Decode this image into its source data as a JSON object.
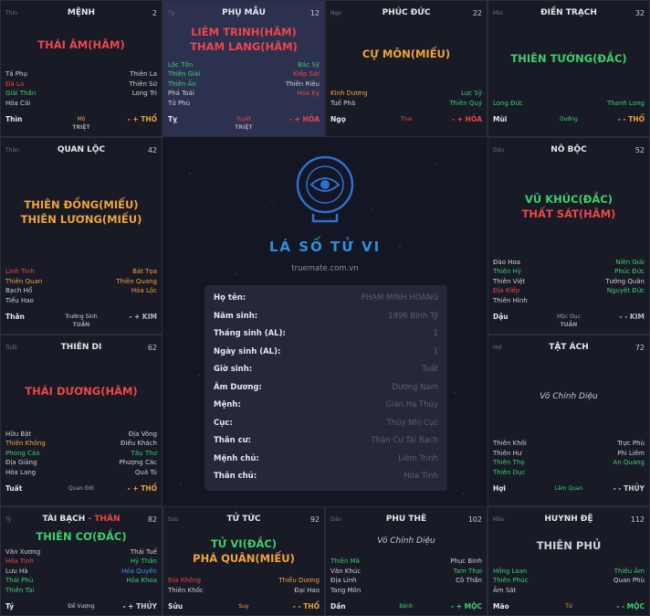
{
  "cells": [
    {
      "branch": "Thìn",
      "name": "MỆNH",
      "number": "2",
      "main": [
        {
          "text": "THÁI ÂM(HÃM)",
          "color": "#f0454a"
        }
      ],
      "left": [
        {
          "text": "Tả Phụ",
          "color": "#d0d0d6"
        },
        {
          "text": "Đà La",
          "color": "#f0454a"
        },
        {
          "text": "Giải Thần",
          "color": "#3ecf6a"
        },
        {
          "text": "Hóa Cái",
          "color": "#d0d0d6"
        }
      ],
      "right": [
        {
          "text": "Thiên La",
          "color": "#d0d0d6"
        },
        {
          "text": "Thiên Sứ",
          "color": "#d0d0d6"
        },
        {
          "text": "Long Trì",
          "color": "#d0d0d6"
        }
      ],
      "footer": {
        "branch": "Thìn",
        "stage": "Mộ",
        "stage_color": "#f0a43a",
        "element": "- + THỔ",
        "element_color": "#f0a43a"
      },
      "marker": "TRIỆT"
    },
    {
      "branch": "Tỵ",
      "name": "PHỤ MẪU",
      "number": "12",
      "highlight": true,
      "main": [
        {
          "text": "LIÊM TRINH(HÃM)",
          "color": "#f0454a"
        },
        {
          "text": "THAM LANG(HÃM)",
          "color": "#f0454a"
        }
      ],
      "left": [
        {
          "text": "Lộc Tồn",
          "color": "#3ecf6a"
        },
        {
          "text": "Thiên Giải",
          "color": "#3ecf6a"
        },
        {
          "text": "Thiên Ấn",
          "color": "#3ecf6a"
        },
        {
          "text": "Phá Toái",
          "color": "#d0d0d6"
        },
        {
          "text": "Tử Phù",
          "color": "#d0d0d6"
        }
      ],
      "right": [
        {
          "text": "Bác Sỹ",
          "color": "#3ecf6a"
        },
        {
          "text": "Kiếp Sát",
          "color": "#f0454a"
        },
        {
          "text": "Thiên Riêu",
          "color": "#d0d0d6"
        },
        {
          "text": "Hóa Kỵ",
          "color": "#f0454a"
        }
      ],
      "footer": {
        "branch": "Tỵ",
        "stage": "Tuyệt",
        "stage_color": "#f0454a",
        "element": "- + HỎA",
        "element_color": "#f0454a"
      },
      "marker": "TRIỆT"
    },
    {
      "branch": "Ngọ",
      "name": "PHÚC ĐỨC",
      "number": "22",
      "main": [
        {
          "text": "CỰ MÔN(MIẾU)",
          "color": "#f0a43a"
        }
      ],
      "left": [
        {
          "text": "Kình Dương",
          "color": "#f0a43a"
        },
        {
          "text": "Tuế Phá",
          "color": "#d0d0d6"
        }
      ],
      "right": [
        {
          "text": "Lực Sỹ",
          "color": "#3ecf6a"
        },
        {
          "text": "Thiên Quý",
          "color": "#3ecf6a"
        }
      ],
      "footer": {
        "branch": "Ngọ",
        "stage": "Thai",
        "stage_color": "#f0454a",
        "element": "- + HỎA",
        "element_color": "#f0454a"
      }
    },
    {
      "branch": "Mùi",
      "name": "ĐIỀN TRẠCH",
      "number": "32",
      "main": [
        {
          "text": "THIÊN TƯỚNG(ĐẮC)",
          "color": "#3ecf6a"
        }
      ],
      "left": [
        {
          "text": "Long Đức",
          "color": "#3ecf6a"
        }
      ],
      "right": [
        {
          "text": "Thanh Long",
          "color": "#3ecf6a"
        }
      ],
      "footer": {
        "branch": "Mùi",
        "stage": "Dưỡng",
        "stage_color": "#3ecf6a",
        "element": "- - THỔ",
        "element_color": "#f0a43a"
      }
    },
    {
      "branch": "Thân",
      "name": "QUAN LỘC",
      "number": "42",
      "main": [
        {
          "text": "THIÊN ĐỒNG(MIẾU)",
          "color": "#f0a43a"
        },
        {
          "text": "THIÊN LƯƠNG(MIẾU)",
          "color": "#f0a43a"
        }
      ],
      "left": [
        {
          "text": "Linh Tinh",
          "color": "#f0454a"
        },
        {
          "text": "Thiên Quan",
          "color": "#f0a43a"
        },
        {
          "text": "Bạch Hổ",
          "color": "#d0d0d6"
        },
        {
          "text": "Tiểu Hao",
          "color": "#d0d0d6"
        }
      ],
      "right": [
        {
          "text": "Bát Tọa",
          "color": "#f0a43a"
        },
        {
          "text": "Thiên Quang",
          "color": "#f0a43a"
        },
        {
          "text": "Hóa Lộc",
          "color": "#f0a43a"
        }
      ],
      "footer": {
        "branch": "Thân",
        "stage": "Trường Sinh",
        "stage_color": "#d0d0d6",
        "element": "- + KIM",
        "element_color": "#b8b8c0"
      },
      "marker": "TUẦN"
    },
    {
      "branch": "Dậu",
      "name": "NÔ BỘC",
      "number": "52",
      "main": [
        {
          "text": "VŨ KHÚC(ĐẮC)",
          "color": "#3ecf6a"
        },
        {
          "text": "THẤT SÁT(HÃM)",
          "color": "#f0454a"
        }
      ],
      "left": [
        {
          "text": "Đào Hoa",
          "color": "#d0d0d6"
        },
        {
          "text": "Thiên Hỷ",
          "color": "#3ecf6a"
        },
        {
          "text": "Thiên Việt",
          "color": "#d0d0d6"
        },
        {
          "text": "Địa Kiếp",
          "color": "#f0454a"
        },
        {
          "text": "Thiên Hình",
          "color": "#d0d0d6"
        }
      ],
      "right": [
        {
          "text": "Niên Giải",
          "color": "#3ecf6a"
        },
        {
          "text": "Phúc Đức",
          "color": "#3ecf6a"
        },
        {
          "text": "Tướng Quân",
          "color": "#d0d0d6"
        },
        {
          "text": "Nguyệt Đức",
          "color": "#3ecf6a"
        }
      ],
      "footer": {
        "branch": "Dậu",
        "stage": "Mộc Dục",
        "stage_color": "#a0a0aa",
        "element": "- - KIM",
        "element_color": "#b8b8c0"
      },
      "marker": "TUẦN"
    },
    {
      "branch": "Tuất",
      "name": "THIÊN DI",
      "number": "62",
      "main": [
        {
          "text": "THÁI DƯƠNG(HÃM)",
          "color": "#f0454a"
        }
      ],
      "left": [
        {
          "text": "Hữu Bật",
          "color": "#d0d0d6"
        },
        {
          "text": "Thiên Không",
          "color": "#f0a43a"
        },
        {
          "text": "Phong Cáo",
          "color": "#3ecf6a"
        },
        {
          "text": "Địa Giảng",
          "color": "#d0d0d6"
        },
        {
          "text": "Hóa Lang",
          "color": "#d0d0d6"
        }
      ],
      "right": [
        {
          "text": "Địa Võng",
          "color": "#d0d0d6"
        },
        {
          "text": "Điếu Khách",
          "color": "#d0d0d6"
        },
        {
          "text": "Tấu Thư",
          "color": "#3ecf6a"
        },
        {
          "text": "Phượng Các",
          "color": "#d0d0d6"
        },
        {
          "text": "Quả Tú",
          "color": "#d0d0d6"
        }
      ],
      "footer": {
        "branch": "Tuất",
        "stage": "Quan Đới",
        "stage_color": "#a0a0aa",
        "element": "- + THỔ",
        "element_color": "#f0a43a"
      }
    },
    {
      "branch": "Hợi",
      "name": "TẬT ÁCH",
      "number": "72",
      "main": [
        {
          "text": "Vô Chính Diệu",
          "color": "#c8c8d0",
          "italic": true
        }
      ],
      "left": [
        {
          "text": "Thiên Khôi",
          "color": "#d0d0d6"
        },
        {
          "text": "Thiên Hư",
          "color": "#d0d0d6"
        },
        {
          "text": "Thiên Thọ",
          "color": "#3ecf6a"
        },
        {
          "text": "Thiên Dục",
          "color": "#3ecf6a"
        }
      ],
      "right": [
        {
          "text": "Trực Phù",
          "color": "#d0d0d6"
        },
        {
          "text": "Phi Liêm",
          "color": "#d0d0d6"
        },
        {
          "text": "An Quang",
          "color": "#3ecf6a"
        }
      ],
      "footer": {
        "branch": "Hợi",
        "stage": "Lâm Quan",
        "stage_color": "#3ecf6a",
        "element": "- - THỦY",
        "element_color": "#d0d0d6"
      }
    },
    {
      "branch": "Tý",
      "name": "TÀI BẠCH",
      "name_suffix": "- THÂN",
      "number": "82",
      "main": [
        {
          "text": "THIÊN CƠ(ĐẮC)",
          "color": "#3ecf6a"
        }
      ],
      "left": [
        {
          "text": "Văn Xương",
          "color": "#d0d0d6"
        },
        {
          "text": "Hóa Tinh",
          "color": "#f0454a"
        },
        {
          "text": "Lưu Hà",
          "color": "#d0d0d6"
        },
        {
          "text": "Thái Phù",
          "color": "#3ecf6a"
        },
        {
          "text": "Thiên Tài",
          "color": "#3ecf6a"
        }
      ],
      "right": [
        {
          "text": "Thái Tuế",
          "color": "#d0d0d6"
        },
        {
          "text": "Hỷ Thần",
          "color": "#3ecf6a"
        },
        {
          "text": "Hóa Quyền",
          "color": "#4a90e8"
        },
        {
          "text": "Hóa Khoa",
          "color": "#3ecf6a"
        }
      ],
      "footer": {
        "branch": "Tý",
        "stage": "Đế Vượng",
        "stage_color": "#d0d0d6",
        "element": "- + THỦY",
        "element_color": "#d0d0d6"
      }
    },
    {
      "branch": "Sửu",
      "name": "TỬ TỨC",
      "number": "92",
      "main": [
        {
          "text": "TỬ VI(ĐẮC)",
          "color": "#3ecf6a"
        },
        {
          "text": "PHÁ QUÂN(MIẾU)",
          "color": "#f0a43a"
        }
      ],
      "left": [
        {
          "text": "Địa Không",
          "color": "#f0454a"
        },
        {
          "text": "Thiên Khốc",
          "color": "#d0d0d6"
        }
      ],
      "right": [
        {
          "text": "Thiếu Dương",
          "color": "#f0a43a"
        },
        {
          "text": "Đại Hao",
          "color": "#d0d0d6"
        }
      ],
      "footer": {
        "branch": "Sửu",
        "stage": "Suy",
        "stage_color": "#f0a43a",
        "element": "- - THỔ",
        "element_color": "#f0a43a"
      }
    },
    {
      "branch": "Dần",
      "name": "PHU THÊ",
      "number": "102",
      "main": [
        {
          "text": "Vô Chính Diệu",
          "color": "#c8c8d0",
          "italic": true
        }
      ],
      "left": [
        {
          "text": "Thiên Mã",
          "color": "#3ecf6a"
        },
        {
          "text": "Văn Khúc",
          "color": "#d0d0d6"
        },
        {
          "text": "Địa Linh",
          "color": "#d0d0d6"
        },
        {
          "text": "Tang Môn",
          "color": "#d0d0d6"
        }
      ],
      "right": [
        {
          "text": "Phục Binh",
          "color": "#d0d0d6"
        },
        {
          "text": "Tam Thai",
          "color": "#3ecf6a"
        },
        {
          "text": "Cô Thần",
          "color": "#d0d0d6"
        }
      ],
      "footer": {
        "branch": "Dần",
        "stage": "Bệnh",
        "stage_color": "#3ecf6a",
        "element": "- + MỘC",
        "element_color": "#3ecf6a"
      }
    },
    {
      "branch": "Mão",
      "name": "HUYNH ĐỆ",
      "number": "112",
      "main": [
        {
          "text": "THIÊN PHỦ",
          "color": "#d0d0d6"
        }
      ],
      "left": [
        {
          "text": "Hồng Loan",
          "color": "#3ecf6a"
        },
        {
          "text": "Thiên Phúc",
          "color": "#3ecf6a"
        },
        {
          "text": "Âm Sát",
          "color": "#d0d0d6"
        }
      ],
      "right": [
        {
          "text": "Thiếu Âm",
          "color": "#3ecf6a"
        },
        {
          "text": "Quan Phù",
          "color": "#d0d0d6"
        }
      ],
      "footer": {
        "branch": "Mão",
        "stage": "Tử",
        "stage_color": "#f0a43a",
        "element": "- - MỘC",
        "element_color": "#3ecf6a"
      }
    }
  ],
  "center": {
    "title": "LÁ SỐ TỬ VI",
    "site": "truemate.com.vn",
    "info": [
      [
        "Họ tên:",
        "PHẠM MINH HOÀNG"
      ],
      [
        "Năm sinh:",
        "1996 Bính Tý"
      ],
      [
        "Tháng sinh (AL):",
        "1"
      ],
      [
        "Ngày sinh (AL):",
        "1"
      ],
      [
        "Giờ sinh:",
        "Tuất"
      ],
      [
        "Âm Dương:",
        "Dương Nam"
      ],
      [
        "Mệnh:",
        "Giản Hạ Thủy"
      ],
      [
        "Cục:",
        "Thủy Nhị Cục"
      ],
      [
        "Thân cư:",
        "Thân Cư Tài Bạch"
      ],
      [
        "Mệnh chủ:",
        "Liêm Trinh"
      ],
      [
        "Thân chủ:",
        "Hỏa Tinh"
      ]
    ]
  }
}
